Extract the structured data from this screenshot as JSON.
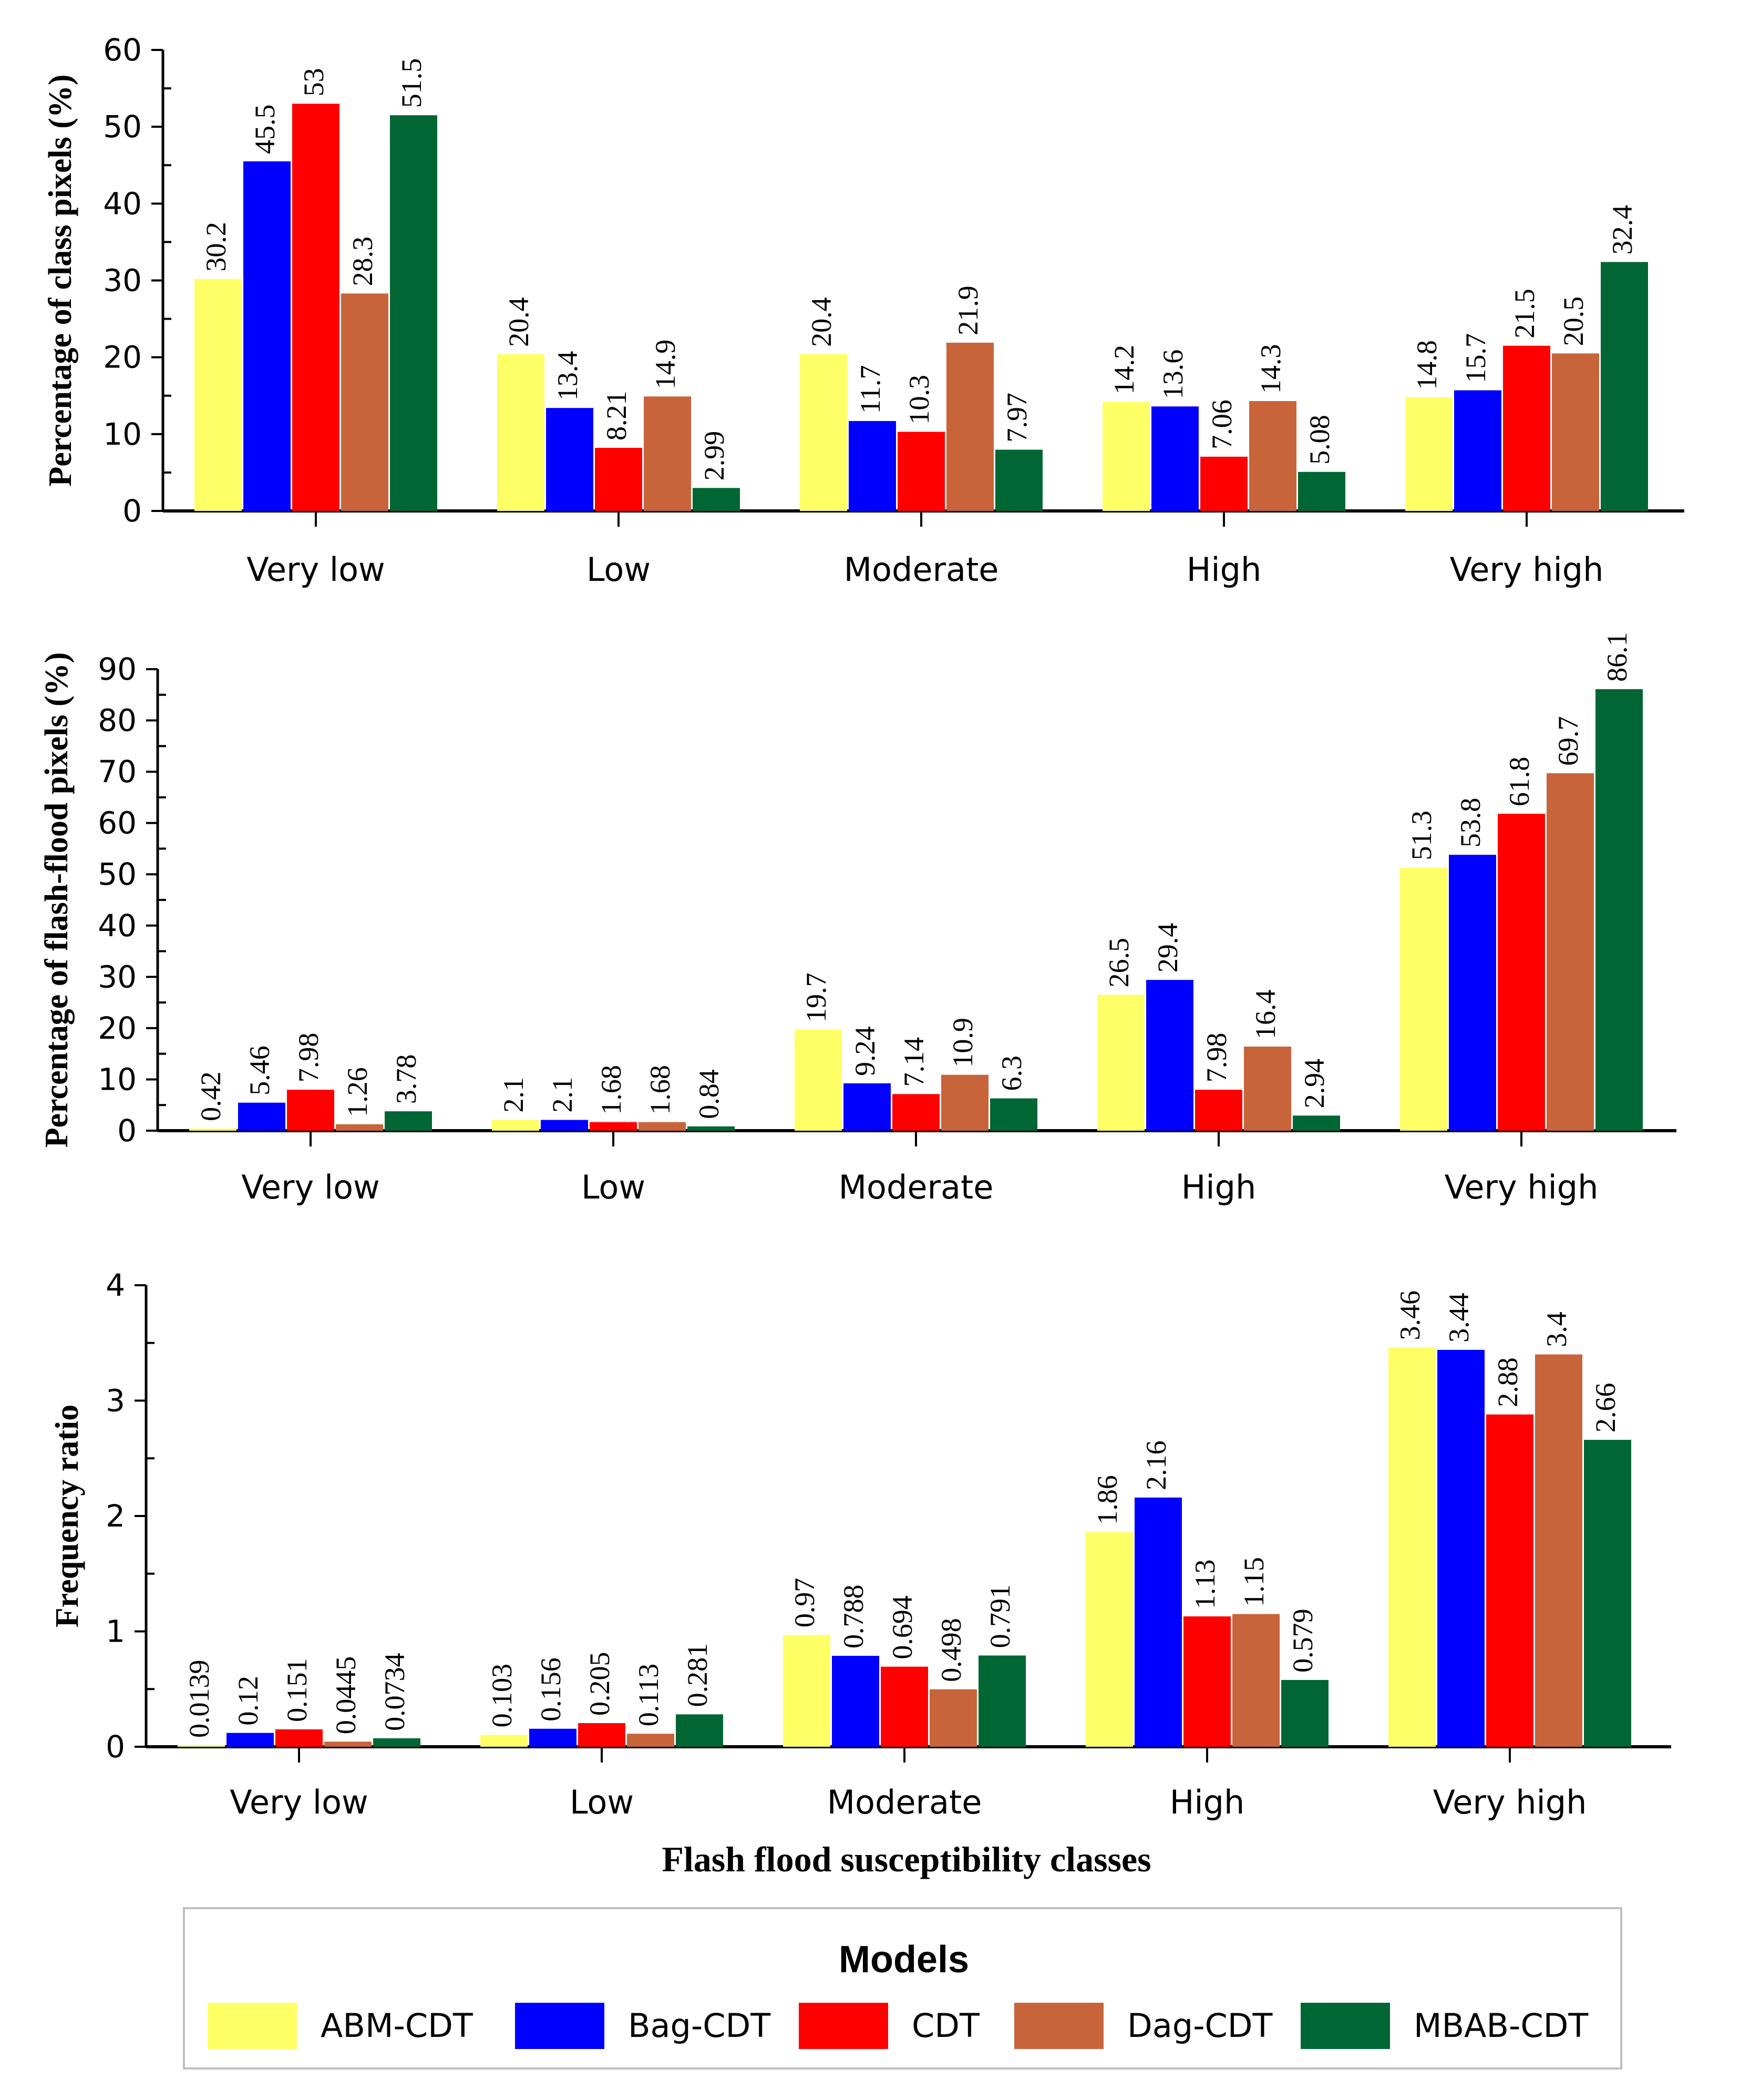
{
  "colors": {
    "ABM-CDT": "#FFFF66",
    "Bag-CDT": "#0000FF",
    "CDT": "#FF0000",
    "Dag-CDT": "#C8643A",
    "MBAB-CDT": "#006633"
  },
  "xaxis_title": "Flash flood susceptibility classes",
  "legend": {
    "title": "Models",
    "items": [
      "ABM-CDT",
      "Bag-CDT",
      "CDT",
      "Dag-CDT",
      "MBAB-CDT"
    ],
    "placement": "bottom"
  },
  "chart_data": [
    {
      "type": "bar",
      "ylabel": "Percentage of class pixels (%)",
      "xlabel": "",
      "ylim": [
        0,
        60
      ],
      "major_step": 10,
      "categories": [
        "Very low",
        "Low",
        "Moderate",
        "High",
        "Very high"
      ],
      "series": [
        {
          "name": "ABM-CDT",
          "values": [
            30.2,
            20.4,
            20.4,
            14.2,
            14.8
          ],
          "labels": [
            "30.2",
            "20.4",
            "20.4",
            "14.2",
            "14.8"
          ]
        },
        {
          "name": "Bag-CDT",
          "values": [
            45.5,
            13.4,
            11.7,
            13.6,
            15.7
          ],
          "labels": [
            "45.5",
            "13.4",
            "11.7",
            "13.6",
            "15.7"
          ]
        },
        {
          "name": "CDT",
          "values": [
            53,
            8.21,
            10.3,
            7.06,
            21.5
          ],
          "labels": [
            "53",
            "8.21",
            "10.3",
            "7.06",
            "21.5"
          ]
        },
        {
          "name": "Dag-CDT",
          "values": [
            28.3,
            14.9,
            21.9,
            14.3,
            20.5
          ],
          "labels": [
            "28.3",
            "14.9",
            "21.9",
            "14.3",
            "20.5"
          ]
        },
        {
          "name": "MBAB-CDT",
          "values": [
            51.5,
            2.99,
            7.97,
            5.08,
            32.4
          ],
          "labels": [
            "51.5",
            "2.99",
            "7.97",
            "5.08",
            "32.4"
          ]
        }
      ]
    },
    {
      "type": "bar",
      "ylabel": "Percentage of flash-flood pixels (%)",
      "xlabel": "",
      "ylim": [
        0,
        90
      ],
      "major_step": 10,
      "categories": [
        "Very low",
        "Low",
        "Moderate",
        "High",
        "Very high"
      ],
      "series": [
        {
          "name": "ABM-CDT",
          "values": [
            0.42,
            2.1,
            19.7,
            26.5,
            51.3
          ],
          "labels": [
            "0.42",
            "2.1",
            "19.7",
            "26.5",
            "51.3"
          ]
        },
        {
          "name": "Bag-CDT",
          "values": [
            5.46,
            2.1,
            9.24,
            29.4,
            53.8
          ],
          "labels": [
            "5.46",
            "2.1",
            "9.24",
            "29.4",
            "53.8"
          ]
        },
        {
          "name": "CDT",
          "values": [
            7.98,
            1.68,
            7.14,
            7.98,
            61.8
          ],
          "labels": [
            "7.98",
            "1.68",
            "7.14",
            "7.98",
            "61.8"
          ]
        },
        {
          "name": "Dag-CDT",
          "values": [
            1.26,
            1.68,
            10.9,
            16.4,
            69.7
          ],
          "labels": [
            "1.26",
            "1.68",
            "10.9",
            "16.4",
            "69.7"
          ]
        },
        {
          "name": "MBAB-CDT",
          "values": [
            3.78,
            0.84,
            6.3,
            2.94,
            86.1
          ],
          "labels": [
            "3.78",
            "0.84",
            "6.3",
            "2.94",
            "86.1"
          ]
        }
      ]
    },
    {
      "type": "bar",
      "ylabel": "Frequency ratio",
      "xlabel": "Flash flood susceptibility classes",
      "ylim": [
        0,
        4
      ],
      "major_step": 1,
      "categories": [
        "Very low",
        "Low",
        "Moderate",
        "High",
        "Very high"
      ],
      "series": [
        {
          "name": "ABM-CDT",
          "values": [
            0.0139,
            0.103,
            0.97,
            1.86,
            3.46
          ],
          "labels": [
            "0.0139",
            "0.103",
            "0.97",
            "1.86",
            "3.46"
          ]
        },
        {
          "name": "Bag-CDT",
          "values": [
            0.12,
            0.156,
            0.788,
            2.16,
            3.44
          ],
          "labels": [
            "0.12",
            "0.156",
            "0.788",
            "2.16",
            "3.44"
          ]
        },
        {
          "name": "CDT",
          "values": [
            0.151,
            0.205,
            0.694,
            1.13,
            2.88
          ],
          "labels": [
            "0.151",
            "0.205",
            "0.694",
            "1.13",
            "2.88"
          ]
        },
        {
          "name": "Dag-CDT",
          "values": [
            0.0445,
            0.113,
            0.498,
            1.15,
            3.4
          ],
          "labels": [
            "0.0445",
            "0.113",
            "0.498",
            "1.15",
            "3.4"
          ]
        },
        {
          "name": "MBAB-CDT",
          "values": [
            0.0734,
            0.281,
            0.791,
            0.579,
            2.66
          ],
          "labels": [
            "0.0734",
            "0.281",
            "0.791",
            "0.579",
            "2.66"
          ]
        }
      ]
    }
  ]
}
